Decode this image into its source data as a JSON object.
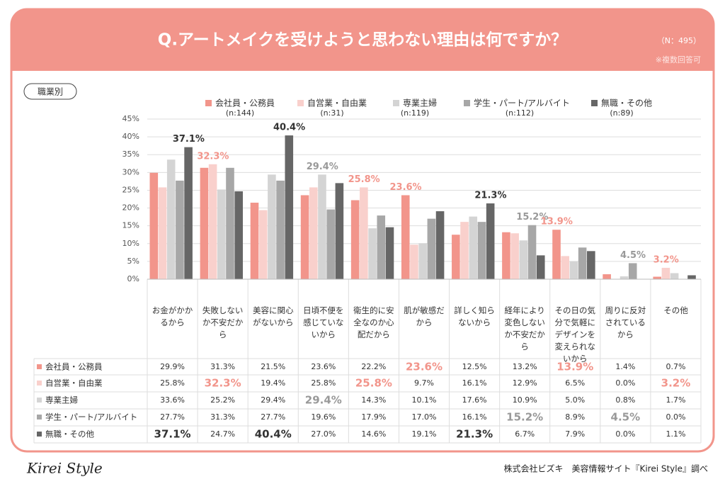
{
  "header": {
    "title": "Q.アートメイクを受けようと思わない理由は何ですか？",
    "sample": "（N：495）",
    "note": "※複数回答可"
  },
  "section_label": "職業別",
  "chart_data": {
    "type": "bar",
    "categories": [
      "お金がかかるから",
      "失敗しないか不安だから",
      "美容に関心がないから",
      "日頃不便を感じていないから",
      "衛生的に安全なのか心配だから",
      "肌が敏感だから",
      "詳しく知らないから",
      "経年により変色しないか不安だから",
      "その日の気分で気軽にデザインを変えられないから",
      "周りに反対されているから",
      "その他"
    ],
    "series": [
      {
        "name": "会社員・公務員",
        "n": "(n:144)",
        "color": "#f2958b",
        "values": [
          29.9,
          31.3,
          21.5,
          23.6,
          22.2,
          23.6,
          12.5,
          13.2,
          13.9,
          1.4,
          0.7
        ],
        "value_labels": [
          "29.9%",
          "31.3%",
          "21.5%",
          "23.6%",
          "22.2%",
          "23.6%",
          "12.5%",
          "13.2%",
          "13.9%",
          "1.4%",
          "0.7%"
        ]
      },
      {
        "name": "自営業・自由業",
        "n": "(n:31)",
        "color": "#f9d0cc",
        "values": [
          25.8,
          32.3,
          19.4,
          25.8,
          25.8,
          9.7,
          16.1,
          12.9,
          6.5,
          0.0,
          3.2
        ],
        "value_labels": [
          "25.8%",
          "32.3%",
          "19.4%",
          "25.8%",
          "25.8%",
          "9.7%",
          "16.1%",
          "12.9%",
          "6.5%",
          "0.0%",
          "3.2%"
        ]
      },
      {
        "name": "専業主婦",
        "n": "(n:119)",
        "color": "#d4d4d4",
        "values": [
          33.6,
          25.2,
          29.4,
          29.4,
          14.3,
          10.1,
          17.6,
          10.9,
          5.0,
          0.8,
          1.7
        ],
        "value_labels": [
          "33.6%",
          "25.2%",
          "29.4%",
          "29.4%",
          "14.3%",
          "10.1%",
          "17.6%",
          "10.9%",
          "5.0%",
          "0.8%",
          "1.7%"
        ]
      },
      {
        "name": "学生・パート/アルバイト",
        "n": "(n:112)",
        "color": "#a7a7a7",
        "values": [
          27.7,
          31.3,
          27.7,
          19.6,
          17.9,
          17.0,
          16.1,
          15.2,
          8.9,
          4.5,
          0.0
        ],
        "value_labels": [
          "27.7%",
          "31.3%",
          "27.7%",
          "19.6%",
          "17.9%",
          "17.0%",
          "16.1%",
          "15.2%",
          "8.9%",
          "4.5%",
          "0.0%"
        ]
      },
      {
        "name": "無職・その他",
        "n": "(n:89)",
        "color": "#666666",
        "values": [
          37.1,
          24.7,
          40.4,
          27.0,
          14.6,
          19.1,
          21.3,
          6.7,
          7.9,
          0.0,
          1.1
        ],
        "value_labels": [
          "37.1%",
          "24.7%",
          "40.4%",
          "27.0%",
          "14.6%",
          "19.1%",
          "21.3%",
          "6.7%",
          "7.9%",
          "0.0%",
          "1.1%"
        ]
      }
    ],
    "ylim": [
      0,
      45
    ],
    "yticks": [
      {
        "value": 0,
        "label": "0%"
      },
      {
        "value": 5,
        "label": "5%"
      },
      {
        "value": 10,
        "label": "10%"
      },
      {
        "value": 15,
        "label": "15%"
      },
      {
        "value": 20,
        "label": "20%"
      },
      {
        "value": 25,
        "label": "25%"
      },
      {
        "value": 30,
        "label": "30%"
      },
      {
        "value": 35,
        "label": "35%"
      },
      {
        "value": 40,
        "label": "40%"
      },
      {
        "value": 45,
        "label": "45%"
      }
    ],
    "grid": true
  },
  "footer": {
    "logo": "Kirei Style",
    "source": "株式会社ビズキ　美容情報サイト『Kirei Style』調べ"
  }
}
